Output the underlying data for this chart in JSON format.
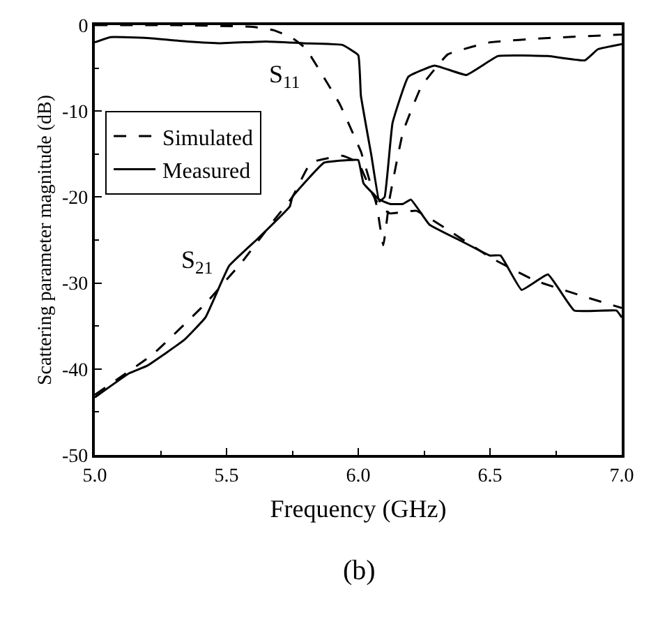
{
  "chart_data": {
    "type": "line",
    "xlabel": "Frequency (GHz)",
    "ylabel": "Scattering parameter magnitude (dB)",
    "xlim": [
      5.0,
      7.0
    ],
    "ylim": [
      -50,
      0
    ],
    "xticks": [
      {
        "value": 5.0,
        "label": "5.0"
      },
      {
        "value": 5.5,
        "label": "5.5"
      },
      {
        "value": 6.0,
        "label": "6.0"
      },
      {
        "value": 6.5,
        "label": "6.5"
      },
      {
        "value": 7.0,
        "label": "7.0"
      }
    ],
    "yticks": [
      -50,
      -40,
      -30,
      -20,
      -10,
      0
    ],
    "legend": "top left",
    "marker": "none",
    "series": [
      {
        "name": "Simulated",
        "color": "#000000",
        "line_style": "dashed",
        "x": [
          5.0,
          5.3,
          5.6,
          5.68,
          5.75,
          5.8,
          5.93,
          6.0,
          6.01,
          6.07,
          6.095,
          6.12,
          6.17,
          6.24,
          6.34,
          6.5,
          6.72,
          7.0
        ],
        "values": [
          0,
          0,
          -0.2,
          -0.6,
          -1.5,
          -2.7,
          -9.2,
          -14,
          -14.7,
          -21,
          -25.6,
          -20,
          -12.4,
          -7.1,
          -3.4,
          -2.0,
          -1.5,
          -1.1
        ]
      },
      {
        "name": "Measured",
        "color": "#000000",
        "line_style": "solid",
        "x": [
          5.0,
          5.06,
          5.2,
          5.35,
          5.48,
          5.65,
          5.79,
          5.94,
          6.0,
          6.01,
          6.05,
          6.08,
          6.1,
          6.13,
          6.19,
          6.29,
          6.41,
          6.53,
          6.72,
          6.86,
          6.91,
          7.0
        ],
        "values": [
          -2,
          -1.4,
          -1.5,
          -1.9,
          -2.1,
          -1.9,
          -2.1,
          -2.3,
          -3.5,
          -8.2,
          -15.2,
          -20.5,
          -20.0,
          -11.4,
          -6,
          -4.7,
          -5.8,
          -3.6,
          -3.6,
          -4.1,
          -2.8,
          -2.2
        ]
      },
      {
        "color": "#000000",
        "line_style": "dashed",
        "x": [
          5.0,
          5.22,
          5.42,
          5.56,
          5.68,
          5.75,
          5.82,
          5.94,
          6.0,
          6.05,
          6.08,
          6.12,
          6.22,
          6.34,
          6.5,
          6.67,
          6.86,
          7.0
        ],
        "values": [
          -43,
          -38.3,
          -32.4,
          -27.5,
          -22.7,
          -20,
          -16,
          -15.2,
          -16,
          -19.4,
          -21,
          -21.9,
          -21.6,
          -23.8,
          -27,
          -29.7,
          -31.6,
          -32.9
        ]
      },
      {
        "color": "#000000",
        "line_style": "solid",
        "x": [
          5.0,
          5.13,
          5.2,
          5.34,
          5.42,
          5.51,
          5.62,
          5.74,
          5.75,
          5.87,
          5.96,
          6.0,
          6.02,
          6.08,
          6.12,
          6.17,
          6.2,
          6.27,
          6.39,
          6.5,
          6.54,
          6.62,
          6.72,
          6.82,
          6.98,
          7.0
        ],
        "values": [
          -43.3,
          -40.5,
          -39.6,
          -36.6,
          -34,
          -28,
          -24.8,
          -21.1,
          -20,
          -16,
          -15.7,
          -15.7,
          -18.4,
          -20.3,
          -20.8,
          -20.8,
          -20.3,
          -23.2,
          -25.1,
          -26.8,
          -26.8,
          -30.8,
          -29,
          -33.2,
          -33.2,
          -34
        ]
      }
    ],
    "annotations": [
      "S$_{11}$",
      "S$_{21}$",
      "(b)"
    ]
  }
}
